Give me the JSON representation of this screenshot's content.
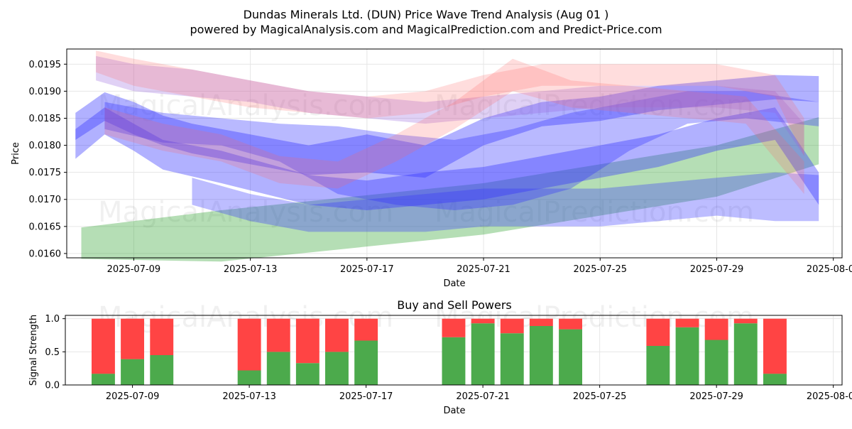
{
  "title_line1": "Dundas Minerals Ltd. (DUN) Price Wave Trend Analysis (Aug 01 )",
  "title_line2": "powered by MagicalAnalysis.com and MagicalPrediction.com and Predict-Price.com",
  "watermarks": [
    "MagicalAnalysis.com",
    "MagicalPrediction.com"
  ],
  "colors": {
    "green_band": "#2ca02c",
    "blue_band": "#3333ff",
    "red_band": "#ff6666",
    "purple_band": "#9966dd",
    "buy": "#4caa4c",
    "sell": "#ff4444"
  },
  "chart_data": [
    {
      "type": "area",
      "title": "",
      "xlabel": "Date",
      "ylabel": "Price",
      "x_start": "2025-07-07",
      "x_end": "2025-08-02",
      "xlim": [
        -0.3,
        26.3
      ],
      "ylim": [
        0.01592,
        0.01978
      ],
      "grid": true,
      "yticks": [
        0.016,
        0.0165,
        0.017,
        0.0175,
        0.018,
        0.0185,
        0.019,
        0.0195
      ],
      "ytick_labels": [
        "0.0160",
        "0.0165",
        "0.0170",
        "0.0175",
        "0.0180",
        "0.0185",
        "0.0190",
        "0.0195"
      ],
      "xticks": [
        2,
        6,
        10,
        14,
        18,
        22,
        26
      ],
      "xtick_labels": [
        "2025-07-09",
        "2025-07-13",
        "2025-07-17",
        "2025-07-21",
        "2025-07-25",
        "2025-07-29",
        "2025-08-01"
      ],
      "bands": [
        {
          "name": "green trend",
          "color": "green",
          "opacity": 0.35,
          "x": [
            0.2,
            5,
            14,
            22,
            25.5
          ],
          "upper": [
            0.01648,
            0.0168,
            0.0173,
            0.018,
            0.01852
          ],
          "lower": [
            0.0159,
            0.01585,
            0.01635,
            0.01705,
            0.01765
          ]
        },
        {
          "name": "blue wave 1",
          "color": "blue",
          "opacity": 0.38,
          "x": [
            0,
            1,
            2,
            3,
            4,
            6,
            8,
            10,
            12,
            14,
            16,
            18,
            20,
            22,
            24,
            25.5
          ],
          "upper": [
            0.0186,
            0.01898,
            0.0188,
            0.01855,
            0.0184,
            0.0182,
            0.018,
            0.0182,
            0.018,
            0.0185,
            0.0188,
            0.0189,
            0.0191,
            0.0192,
            0.0193,
            0.01928
          ],
          "lower": [
            0.0181,
            0.01845,
            0.0182,
            0.018,
            0.01785,
            0.01765,
            0.01745,
            0.0175,
            0.0174,
            0.018,
            0.01835,
            0.01845,
            0.01865,
            0.01875,
            0.01885,
            0.0188
          ]
        },
        {
          "name": "blue wave 2",
          "color": "blue",
          "opacity": 0.38,
          "x": [
            0,
            1,
            2,
            3,
            5,
            8,
            10,
            12,
            14,
            16,
            18,
            20,
            22,
            24,
            25.5
          ],
          "upper": [
            0.0183,
            0.0187,
            0.0184,
            0.0181,
            0.0179,
            0.01745,
            0.01735,
            0.0175,
            0.0176,
            0.0178,
            0.018,
            0.0182,
            0.0185,
            0.0187,
            0.0175
          ],
          "lower": [
            0.01775,
            0.0182,
            0.0179,
            0.01755,
            0.0173,
            0.0169,
            0.0168,
            0.0169,
            0.017,
            0.0172,
            0.0174,
            0.0176,
            0.0179,
            0.0181,
            0.0169
          ]
        },
        {
          "name": "blue wave 3",
          "color": "blue",
          "opacity": 0.34,
          "x": [
            1,
            3,
            5,
            7,
            9,
            11,
            13,
            15,
            17,
            19,
            21,
            23,
            25.5
          ],
          "upper": [
            0.0188,
            0.0186,
            0.0185,
            0.0184,
            0.01835,
            0.0182,
            0.0181,
            0.0183,
            0.0186,
            0.0188,
            0.019,
            0.019,
            0.0188
          ],
          "lower": [
            0.0183,
            0.01805,
            0.018,
            0.0177,
            0.0171,
            0.0169,
            0.0168,
            0.0169,
            0.0172,
            0.0179,
            0.0184,
            0.0185,
            0.01835
          ]
        },
        {
          "name": "blue wave 4",
          "color": "blue",
          "opacity": 0.32,
          "x": [
            4,
            6,
            8,
            10,
            12,
            14,
            16,
            18,
            20,
            22,
            24,
            25.5
          ],
          "upper": [
            0.0174,
            0.0171,
            0.0169,
            0.017,
            0.0171,
            0.0172,
            0.0172,
            0.0172,
            0.0173,
            0.0174,
            0.0175,
            0.01745
          ],
          "lower": [
            0.0169,
            0.0166,
            0.0164,
            0.0164,
            0.0164,
            0.0165,
            0.0165,
            0.0165,
            0.0166,
            0.0167,
            0.0166,
            0.0166
          ]
        },
        {
          "name": "purple wave",
          "color": "purple",
          "opacity": 0.3,
          "x": [
            0.7,
            2,
            4,
            6,
            8,
            10,
            12,
            14,
            16,
            18,
            20,
            22,
            24,
            25
          ],
          "upper": [
            0.01965,
            0.0195,
            0.0194,
            0.0192,
            0.019,
            0.0189,
            0.0188,
            0.0189,
            0.019,
            0.0191,
            0.0191,
            0.0191,
            0.019,
            0.0184
          ],
          "lower": [
            0.0192,
            0.019,
            0.0189,
            0.0188,
            0.0186,
            0.0185,
            0.0184,
            0.0185,
            0.0186,
            0.0187,
            0.0187,
            0.0187,
            0.0186,
            0.0178
          ]
        },
        {
          "name": "red wave 1",
          "color": "red",
          "opacity": 0.22,
          "x": [
            0.7,
            2,
            4,
            6,
            8,
            10,
            12,
            14,
            16,
            18,
            20,
            22,
            24,
            25
          ],
          "upper": [
            0.01975,
            0.0196,
            0.0194,
            0.0192,
            0.019,
            0.0189,
            0.019,
            0.0193,
            0.0195,
            0.0195,
            0.0195,
            0.0195,
            0.0193,
            0.0185
          ],
          "lower": [
            0.01935,
            0.0191,
            0.0189,
            0.0187,
            0.0186,
            0.0185,
            0.0186,
            0.0189,
            0.0191,
            0.0191,
            0.0191,
            0.0191,
            0.0189,
            0.0178
          ]
        },
        {
          "name": "red wave 2",
          "color": "red",
          "opacity": 0.22,
          "x": [
            1,
            3,
            5,
            7,
            9,
            11,
            13,
            15,
            17,
            19,
            21,
            23,
            25
          ],
          "upper": [
            0.0187,
            0.0184,
            0.0182,
            0.0178,
            0.0177,
            0.0182,
            0.0188,
            0.0196,
            0.0192,
            0.0191,
            0.019,
            0.0189,
            0.0177
          ],
          "lower": [
            0.0182,
            0.0179,
            0.0177,
            0.0173,
            0.0172,
            0.0177,
            0.0183,
            0.019,
            0.0187,
            0.0186,
            0.0185,
            0.0184,
            0.0171
          ]
        }
      ]
    },
    {
      "type": "bar",
      "title": "Buy and Sell Powers",
      "xlabel": "Date",
      "ylabel": "Signal Strength",
      "xlim": [
        -0.3,
        26.3
      ],
      "ylim": [
        0,
        1.05
      ],
      "grid": true,
      "yticks": [
        0,
        0.5,
        1
      ],
      "ytick_labels": [
        "0.0",
        "0.5",
        "1.0"
      ],
      "xticks": [
        2,
        6,
        10,
        14,
        18,
        22,
        26
      ],
      "xtick_labels": [
        "2025-07-09",
        "2025-07-13",
        "2025-07-17",
        "2025-07-21",
        "2025-07-25",
        "2025-07-29",
        "2025-08-01"
      ],
      "x": [
        1,
        2,
        3,
        6,
        7,
        8,
        9,
        10,
        13,
        14,
        15,
        16,
        17,
        20,
        21,
        22,
        23,
        24
      ],
      "series": [
        {
          "name": "Buy",
          "color": "buy",
          "values": [
            0.17,
            0.39,
            0.45,
            0.22,
            0.5,
            0.33,
            0.5,
            0.67,
            0.72,
            0.93,
            0.78,
            0.89,
            0.84,
            0.59,
            0.87,
            0.68,
            0.93,
            0.17
          ]
        },
        {
          "name": "Sell",
          "color": "sell",
          "values": [
            0.83,
            0.61,
            0.55,
            0.78,
            0.5,
            0.67,
            0.5,
            0.33,
            0.28,
            0.07,
            0.22,
            0.11,
            0.16,
            0.41,
            0.13,
            0.32,
            0.07,
            0.83
          ]
        }
      ]
    }
  ]
}
